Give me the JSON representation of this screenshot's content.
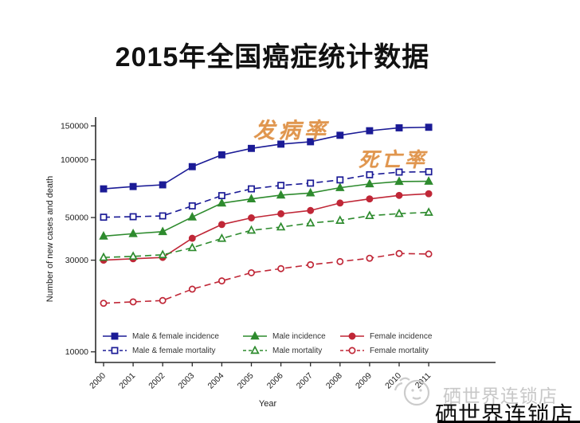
{
  "title": "2015年全国癌症统计数据",
  "annotations": {
    "incidence_label": "发病率",
    "mortality_label": "死亡率",
    "color": "#e0964f"
  },
  "watermark": {
    "logo": "speech-bubble-face-icon",
    "text": "硒世界连锁店",
    "color": "#c8c8c8"
  },
  "footer": {
    "text": "硒世界连锁店"
  },
  "colors": {
    "navy": "#1b1b96",
    "green": "#2e8b2e",
    "red": "#c02737",
    "axis": "#2b2b2b"
  },
  "chart_data": {
    "type": "line",
    "x": [
      2000,
      2001,
      2002,
      2003,
      2004,
      2005,
      2006,
      2007,
      2008,
      2009,
      2010,
      2011
    ],
    "xlabel": "Year",
    "ylabel": "Number of new cases and death",
    "yscale": "log",
    "yticks": [
      10000,
      30000,
      50000,
      100000,
      150000
    ],
    "ylim": [
      10000,
      160000
    ],
    "grid": false,
    "legend_position": "bottom",
    "series": [
      {
        "name": "Male & female incidence",
        "color": "#1b1b96",
        "marker": "square",
        "fill": "filled",
        "line": "solid",
        "values": [
          70500,
          72500,
          74000,
          92000,
          106000,
          114500,
          120500,
          124000,
          134000,
          141500,
          146500,
          147500
        ]
      },
      {
        "name": "Male incidence",
        "color": "#2e8b2e",
        "marker": "triangle",
        "fill": "filled",
        "line": "solid",
        "values": [
          40000,
          41200,
          42200,
          50300,
          59400,
          62500,
          65400,
          67100,
          71500,
          74800,
          77000,
          77200
        ]
      },
      {
        "name": "Female incidence",
        "color": "#c02737",
        "marker": "circle",
        "fill": "filled",
        "line": "solid",
        "values": [
          30000,
          30500,
          31000,
          39000,
          46000,
          49800,
          52300,
          54400,
          59500,
          62500,
          65200,
          66500
        ]
      },
      {
        "name": "Male & female mortality",
        "color": "#1b1b96",
        "marker": "square",
        "fill": "open",
        "line": "dashed",
        "values": [
          50200,
          50500,
          51000,
          57500,
          65000,
          70500,
          73500,
          75500,
          78500,
          83500,
          86200,
          86500
        ]
      },
      {
        "name": "Male mortality",
        "color": "#2e8b2e",
        "marker": "triangle",
        "fill": "open",
        "line": "dashed",
        "values": [
          31000,
          31400,
          32000,
          34800,
          38900,
          42900,
          44600,
          46800,
          48300,
          51100,
          52400,
          53200
        ]
      },
      {
        "name": "Female mortality",
        "color": "#c02737",
        "marker": "circle",
        "fill": "open",
        "line": "dashed",
        "values": [
          17900,
          18200,
          18500,
          21200,
          23400,
          25800,
          27100,
          28400,
          29500,
          30700,
          32500,
          32300
        ]
      }
    ]
  }
}
